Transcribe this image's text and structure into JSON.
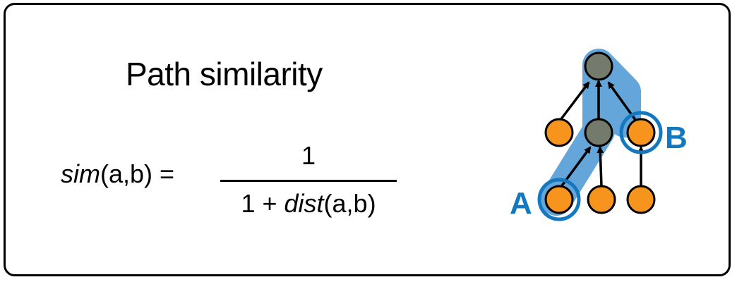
{
  "title": "Path similarity",
  "formula": {
    "lhs_func": "sim",
    "lhs_args": "(a,b)",
    "equals": " =",
    "numerator": "1",
    "denominator_prefix": "1 + ",
    "denominator_func": "dist",
    "denominator_args": "(a,b)"
  },
  "tree": {
    "label_a": "A",
    "label_b": "B",
    "colors": {
      "leaf": "#f7941d",
      "ancestor": "#747b6c",
      "highlight": "#3d8fd1",
      "ring": "#1478c0",
      "label": "#1478c0",
      "edge": "#000000"
    }
  }
}
